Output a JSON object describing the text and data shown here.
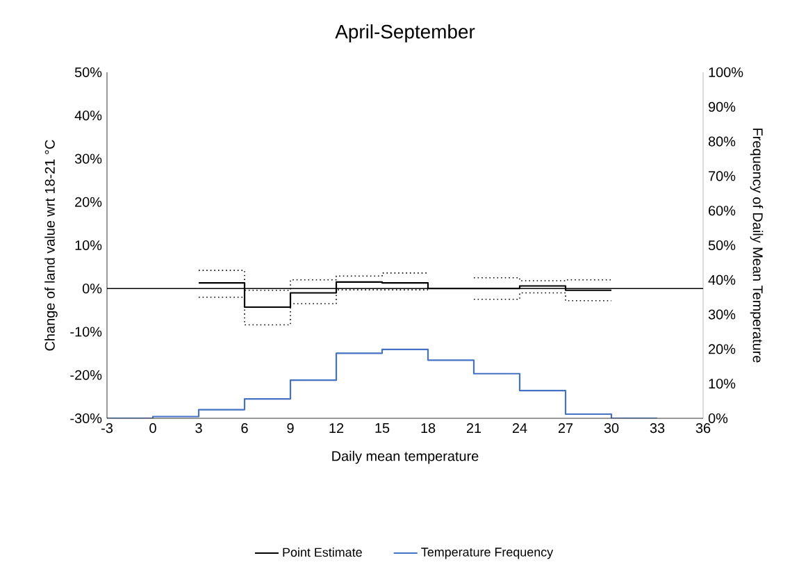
{
  "chart_data": {
    "type": "step",
    "title": "April-September",
    "xlabel": "Daily mean temperature",
    "ylabel": "Change of land value wrt 18-21 °C",
    "y2label": "Frequency of Daily Mean Temperature",
    "xlim": [
      -3,
      36
    ],
    "xticks": [
      -3,
      0,
      3,
      6,
      9,
      12,
      15,
      18,
      21,
      24,
      27,
      30,
      33,
      36
    ],
    "ylim": [
      -30,
      50
    ],
    "yticks": [
      {
        "value": -30,
        "label": "-30%"
      },
      {
        "value": -20,
        "label": "-20%"
      },
      {
        "value": -10,
        "label": "-10%"
      },
      {
        "value": 0,
        "label": "0%"
      },
      {
        "value": 10,
        "label": "10%"
      },
      {
        "value": 20,
        "label": "20%"
      },
      {
        "value": 30,
        "label": "30%"
      },
      {
        "value": 40,
        "label": "40%"
      },
      {
        "value": 50,
        "label": "50%"
      }
    ],
    "y2lim": [
      0,
      100
    ],
    "y2ticks": [
      {
        "value": 0,
        "label": "0%"
      },
      {
        "value": 10,
        "label": "10%"
      },
      {
        "value": 20,
        "label": "20%"
      },
      {
        "value": 30,
        "label": "30%"
      },
      {
        "value": 40,
        "label": "40%"
      },
      {
        "value": 50,
        "label": "50%"
      },
      {
        "value": 60,
        "label": "60%"
      },
      {
        "value": 70,
        "label": "70%"
      },
      {
        "value": 80,
        "label": "80%"
      },
      {
        "value": 90,
        "label": "90%"
      },
      {
        "value": 100,
        "label": "100%"
      }
    ],
    "series": [
      {
        "name": "Point Estimate",
        "color": "#000000",
        "x": [
          3,
          6,
          9,
          12,
          15,
          18,
          21,
          24,
          27,
          30
        ],
        "values": [
          1.3,
          -4.3,
          -1.0,
          1.5,
          1.3,
          0,
          0,
          0.6,
          -0.4,
          -0.4
        ]
      },
      {
        "color": "#000000",
        "line_style": "dotted",
        "x": [
          3,
          6,
          9,
          12,
          15,
          18,
          21,
          24,
          27,
          30
        ],
        "values": [
          4.2,
          -0.4,
          2.0,
          2.9,
          3.6,
          null,
          2.5,
          1.8,
          2.0,
          2.0
        ]
      },
      {
        "color": "#000000",
        "line_style": "dotted",
        "x": [
          3,
          6,
          9,
          12,
          15,
          18,
          21,
          24,
          27,
          30
        ],
        "values": [
          -2.0,
          -8.4,
          -3.5,
          -0.3,
          -0.3,
          null,
          -2.5,
          -1.0,
          -2.8,
          -2.8
        ]
      },
      {
        "name": "Temperature Frequency",
        "color": "#4472c4",
        "axis": "y2",
        "x": [
          -3,
          0,
          3,
          6,
          9,
          12,
          15,
          18,
          21,
          24,
          27,
          30,
          33
        ],
        "values": [
          0,
          0.5,
          2.5,
          5.6,
          11,
          18.8,
          19.9,
          16.8,
          12.9,
          8.0,
          1.2,
          0,
          0
        ]
      }
    ],
    "ref_lines": [
      {
        "axis": "y",
        "value": 0,
        "color": "#000000"
      }
    ],
    "grid": false,
    "legend": "bottom"
  }
}
